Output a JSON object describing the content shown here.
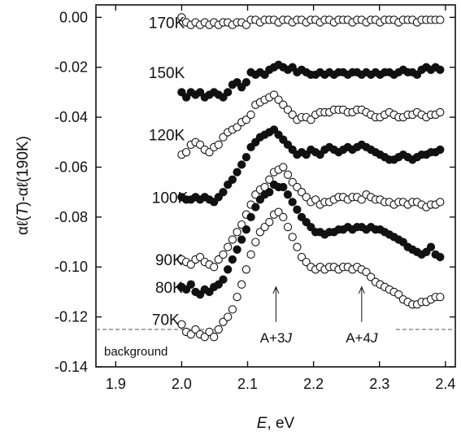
{
  "chart_data": {
    "type": "scatter",
    "xlabel_var": "E",
    "xlabel_unit": ", eV",
    "ylabel_pre": "αℓ(",
    "ylabel_var": "T",
    "ylabel_post": ")-αℓ(190K)",
    "xlim": [
      1.87,
      2.415
    ],
    "ylim": [
      -0.14,
      0.005
    ],
    "xticks": [
      1.9,
      2.0,
      2.1,
      2.2,
      2.3,
      2.4
    ],
    "xtick_labels": [
      "1.9",
      "2.0",
      "2.1",
      "2.2",
      "2.3",
      "2.4"
    ],
    "yticks": [
      0.0,
      -0.02,
      -0.04,
      -0.06,
      -0.08,
      -0.1,
      -0.12,
      -0.14
    ],
    "ytick_labels": [
      "0.00",
      "-0.02",
      "-0.04",
      "-0.06",
      "-0.08",
      "-0.10",
      "-0.12",
      "-0.14"
    ],
    "series": [
      {
        "name": "170K",
        "filled": false,
        "label_pos": [
          1.95,
          -0.002
        ],
        "x": [
          2.0,
          2.007,
          2.014,
          2.021,
          2.028,
          2.035,
          2.042,
          2.049,
          2.056,
          2.063,
          2.07,
          2.077,
          2.084,
          2.091,
          2.098,
          2.105,
          2.112,
          2.119,
          2.126,
          2.133,
          2.14,
          2.147,
          2.154,
          2.161,
          2.168,
          2.175,
          2.182,
          2.189,
          2.196,
          2.203,
          2.21,
          2.217,
          2.224,
          2.231,
          2.238,
          2.245,
          2.252,
          2.259,
          2.266,
          2.273,
          2.28,
          2.287,
          2.294,
          2.301,
          2.308,
          2.315,
          2.322,
          2.329,
          2.336,
          2.343,
          2.35,
          2.357,
          2.364,
          2.371,
          2.378,
          2.385,
          2.392
        ],
        "y": [
          0.0,
          -0.002,
          -0.003,
          -0.002,
          -0.003,
          -0.002,
          -0.003,
          -0.002,
          -0.003,
          -0.002,
          -0.002,
          -0.003,
          -0.002,
          -0.002,
          -0.003,
          -0.001,
          -0.001,
          -0.002,
          -0.001,
          -0.001,
          -0.001,
          -0.002,
          -0.001,
          -0.001,
          -0.002,
          -0.001,
          -0.001,
          -0.002,
          -0.001,
          -0.001,
          -0.002,
          -0.001,
          -0.001,
          -0.002,
          -0.001,
          -0.001,
          -0.001,
          -0.002,
          -0.001,
          -0.001,
          -0.002,
          -0.001,
          -0.001,
          -0.002,
          -0.001,
          -0.001,
          -0.001,
          -0.002,
          -0.001,
          -0.001,
          -0.001,
          -0.002,
          -0.001,
          -0.001,
          -0.001,
          -0.001,
          -0.001
        ]
      },
      {
        "name": "150K",
        "filled": true,
        "label_pos": [
          1.95,
          -0.022
        ],
        "x": [
          2.0,
          2.007,
          2.014,
          2.021,
          2.028,
          2.035,
          2.042,
          2.049,
          2.056,
          2.063,
          2.07,
          2.077,
          2.084,
          2.091,
          2.098,
          2.105,
          2.112,
          2.119,
          2.126,
          2.133,
          2.14,
          2.147,
          2.154,
          2.161,
          2.168,
          2.175,
          2.182,
          2.189,
          2.196,
          2.203,
          2.21,
          2.217,
          2.224,
          2.231,
          2.238,
          2.245,
          2.252,
          2.259,
          2.266,
          2.273,
          2.28,
          2.287,
          2.294,
          2.301,
          2.308,
          2.315,
          2.322,
          2.329,
          2.336,
          2.343,
          2.35,
          2.357,
          2.364,
          2.371,
          2.378,
          2.385,
          2.392
        ],
        "y": [
          -0.03,
          -0.032,
          -0.03,
          -0.031,
          -0.03,
          -0.032,
          -0.031,
          -0.03,
          -0.031,
          -0.032,
          -0.03,
          -0.027,
          -0.026,
          -0.028,
          -0.026,
          -0.022,
          -0.023,
          -0.022,
          -0.023,
          -0.021,
          -0.02,
          -0.019,
          -0.02,
          -0.021,
          -0.02,
          -0.022,
          -0.021,
          -0.022,
          -0.023,
          -0.023,
          -0.022,
          -0.023,
          -0.022,
          -0.023,
          -0.022,
          -0.022,
          -0.023,
          -0.022,
          -0.022,
          -0.023,
          -0.022,
          -0.023,
          -0.022,
          -0.023,
          -0.022,
          -0.022,
          -0.023,
          -0.022,
          -0.021,
          -0.022,
          -0.022,
          -0.023,
          -0.021,
          -0.02,
          -0.021,
          -0.02,
          -0.021
        ]
      },
      {
        "name": "120K",
        "filled": false,
        "label_pos": [
          1.95,
          -0.047
        ],
        "x": [
          2.0,
          2.007,
          2.014,
          2.021,
          2.028,
          2.035,
          2.042,
          2.049,
          2.056,
          2.063,
          2.07,
          2.077,
          2.084,
          2.091,
          2.098,
          2.105,
          2.112,
          2.119,
          2.126,
          2.133,
          2.14,
          2.147,
          2.154,
          2.161,
          2.168,
          2.175,
          2.182,
          2.189,
          2.196,
          2.203,
          2.21,
          2.217,
          2.224,
          2.231,
          2.238,
          2.245,
          2.252,
          2.259,
          2.266,
          2.273,
          2.28,
          2.287,
          2.294,
          2.301,
          2.308,
          2.315,
          2.322,
          2.329,
          2.336,
          2.343,
          2.35,
          2.357,
          2.364,
          2.371,
          2.378,
          2.385,
          2.392
        ],
        "y": [
          -0.055,
          -0.054,
          -0.051,
          -0.05,
          -0.051,
          -0.053,
          -0.054,
          -0.052,
          -0.051,
          -0.048,
          -0.046,
          -0.045,
          -0.044,
          -0.042,
          -0.041,
          -0.039,
          -0.035,
          -0.034,
          -0.033,
          -0.032,
          -0.031,
          -0.033,
          -0.035,
          -0.037,
          -0.039,
          -0.041,
          -0.04,
          -0.04,
          -0.041,
          -0.039,
          -0.038,
          -0.038,
          -0.038,
          -0.037,
          -0.037,
          -0.037,
          -0.038,
          -0.038,
          -0.037,
          -0.037,
          -0.038,
          -0.039,
          -0.04,
          -0.04,
          -0.039,
          -0.038,
          -0.039,
          -0.04,
          -0.04,
          -0.039,
          -0.039,
          -0.038,
          -0.039,
          -0.04,
          -0.039,
          -0.039,
          -0.038
        ]
      },
      {
        "name": "100K",
        "filled": true,
        "label_pos": [
          1.955,
          -0.072
        ],
        "x": [
          2.0,
          2.007,
          2.014,
          2.021,
          2.028,
          2.035,
          2.042,
          2.049,
          2.056,
          2.063,
          2.07,
          2.077,
          2.084,
          2.091,
          2.098,
          2.105,
          2.112,
          2.119,
          2.126,
          2.133,
          2.14,
          2.147,
          2.154,
          2.161,
          2.168,
          2.175,
          2.182,
          2.189,
          2.196,
          2.203,
          2.21,
          2.217,
          2.224,
          2.231,
          2.238,
          2.245,
          2.252,
          2.259,
          2.266,
          2.273,
          2.28,
          2.287,
          2.294,
          2.301,
          2.308,
          2.315,
          2.322,
          2.329,
          2.336,
          2.343,
          2.35,
          2.357,
          2.364,
          2.371,
          2.378,
          2.385,
          2.392
        ],
        "y": [
          -0.072,
          -0.073,
          -0.073,
          -0.072,
          -0.073,
          -0.072,
          -0.073,
          -0.074,
          -0.072,
          -0.07,
          -0.067,
          -0.065,
          -0.062,
          -0.059,
          -0.056,
          -0.052,
          -0.05,
          -0.048,
          -0.047,
          -0.046,
          -0.045,
          -0.047,
          -0.049,
          -0.051,
          -0.053,
          -0.055,
          -0.054,
          -0.055,
          -0.053,
          -0.054,
          -0.055,
          -0.053,
          -0.052,
          -0.053,
          -0.054,
          -0.053,
          -0.052,
          -0.053,
          -0.052,
          -0.051,
          -0.052,
          -0.053,
          -0.054,
          -0.055,
          -0.056,
          -0.057,
          -0.057,
          -0.056,
          -0.055,
          -0.056,
          -0.057,
          -0.056,
          -0.055,
          -0.055,
          -0.054,
          -0.054,
          -0.053
        ]
      },
      {
        "name": "90K",
        "filled": false,
        "label_pos": [
          1.96,
          -0.097
        ],
        "x": [
          2.0,
          2.007,
          2.014,
          2.021,
          2.028,
          2.035,
          2.042,
          2.049,
          2.056,
          2.063,
          2.07,
          2.077,
          2.084,
          2.091,
          2.098,
          2.105,
          2.112,
          2.119,
          2.126,
          2.133,
          2.14,
          2.147,
          2.154,
          2.161,
          2.168,
          2.175,
          2.182,
          2.189,
          2.196,
          2.203,
          2.21,
          2.217,
          2.224,
          2.231,
          2.238,
          2.245,
          2.252,
          2.259,
          2.266,
          2.273,
          2.28,
          2.287,
          2.294,
          2.301,
          2.308,
          2.315,
          2.322,
          2.329,
          2.336,
          2.343,
          2.35,
          2.357,
          2.364,
          2.371,
          2.378,
          2.385,
          2.392
        ],
        "y": [
          -0.097,
          -0.098,
          -0.099,
          -0.097,
          -0.096,
          -0.098,
          -0.099,
          -0.1,
          -0.097,
          -0.095,
          -0.092,
          -0.089,
          -0.086,
          -0.083,
          -0.079,
          -0.075,
          -0.071,
          -0.069,
          -0.068,
          -0.065,
          -0.062,
          -0.061,
          -0.06,
          -0.063,
          -0.066,
          -0.068,
          -0.07,
          -0.072,
          -0.074,
          -0.073,
          -0.075,
          -0.074,
          -0.074,
          -0.073,
          -0.072,
          -0.072,
          -0.073,
          -0.072,
          -0.072,
          -0.073,
          -0.071,
          -0.072,
          -0.073,
          -0.073,
          -0.074,
          -0.074,
          -0.075,
          -0.074,
          -0.074,
          -0.075,
          -0.074,
          -0.074,
          -0.075,
          -0.076,
          -0.075,
          -0.075,
          -0.074
        ]
      },
      {
        "name": "80K",
        "filled": true,
        "label_pos": [
          1.96,
          -0.108
        ],
        "x": [
          2.0,
          2.007,
          2.014,
          2.021,
          2.028,
          2.035,
          2.042,
          2.049,
          2.056,
          2.063,
          2.07,
          2.077,
          2.084,
          2.091,
          2.098,
          2.105,
          2.112,
          2.119,
          2.126,
          2.133,
          2.14,
          2.147,
          2.154,
          2.161,
          2.168,
          2.175,
          2.182,
          2.189,
          2.196,
          2.203,
          2.21,
          2.217,
          2.224,
          2.231,
          2.238,
          2.245,
          2.252,
          2.259,
          2.266,
          2.273,
          2.28,
          2.287,
          2.294,
          2.301,
          2.308,
          2.315,
          2.322,
          2.329,
          2.336,
          2.343,
          2.35,
          2.357,
          2.364,
          2.371,
          2.378,
          2.385,
          2.392
        ],
        "y": [
          -0.108,
          -0.109,
          -0.107,
          -0.11,
          -0.111,
          -0.109,
          -0.11,
          -0.108,
          -0.107,
          -0.105,
          -0.101,
          -0.097,
          -0.093,
          -0.089,
          -0.085,
          -0.08,
          -0.076,
          -0.073,
          -0.071,
          -0.07,
          -0.067,
          -0.068,
          -0.068,
          -0.071,
          -0.074,
          -0.077,
          -0.08,
          -0.082,
          -0.084,
          -0.086,
          -0.086,
          -0.087,
          -0.086,
          -0.086,
          -0.085,
          -0.085,
          -0.084,
          -0.085,
          -0.084,
          -0.084,
          -0.085,
          -0.084,
          -0.085,
          -0.085,
          -0.086,
          -0.087,
          -0.088,
          -0.089,
          -0.09,
          -0.092,
          -0.093,
          -0.094,
          -0.095,
          -0.094,
          -0.092,
          -0.095,
          -0.096
        ]
      },
      {
        "name": "70K",
        "filled": false,
        "label_pos": [
          1.955,
          -0.121
        ],
        "x": [
          2.0,
          2.007,
          2.014,
          2.021,
          2.028,
          2.035,
          2.042,
          2.049,
          2.056,
          2.063,
          2.07,
          2.077,
          2.084,
          2.091,
          2.098,
          2.105,
          2.112,
          2.119,
          2.126,
          2.133,
          2.14,
          2.147,
          2.154,
          2.161,
          2.168,
          2.175,
          2.182,
          2.189,
          2.196,
          2.203,
          2.21,
          2.217,
          2.224,
          2.231,
          2.238,
          2.245,
          2.252,
          2.259,
          2.266,
          2.273,
          2.28,
          2.287,
          2.294,
          2.301,
          2.308,
          2.315,
          2.322,
          2.329,
          2.336,
          2.343,
          2.35,
          2.357,
          2.364,
          2.371,
          2.378,
          2.385,
          2.392
        ],
        "y": [
          -0.123,
          -0.126,
          -0.127,
          -0.125,
          -0.127,
          -0.128,
          -0.126,
          -0.128,
          -0.125,
          -0.122,
          -0.12,
          -0.117,
          -0.112,
          -0.107,
          -0.101,
          -0.095,
          -0.09,
          -0.086,
          -0.084,
          -0.082,
          -0.079,
          -0.078,
          -0.08,
          -0.084,
          -0.088,
          -0.092,
          -0.096,
          -0.098,
          -0.1,
          -0.101,
          -0.1,
          -0.101,
          -0.1,
          -0.1,
          -0.101,
          -0.1,
          -0.1,
          -0.101,
          -0.1,
          -0.101,
          -0.102,
          -0.104,
          -0.106,
          -0.107,
          -0.108,
          -0.109,
          -0.11,
          -0.111,
          -0.113,
          -0.114,
          -0.115,
          -0.115,
          -0.114,
          -0.114,
          -0.113,
          -0.112,
          -0.112
        ]
      }
    ],
    "background": {
      "label": "background",
      "y": -0.125,
      "segments": [
        [
          1.87,
          2.06
        ],
        [
          2.325,
          2.415
        ]
      ]
    },
    "annotations": [
      {
        "label_pre": "A+3",
        "label_var": "J",
        "x": 2.143,
        "y_tail": -0.122,
        "y_head": -0.108
      },
      {
        "label_pre": "A+4",
        "label_var": "J",
        "x": 2.273,
        "y_tail": -0.122,
        "y_head": -0.108
      }
    ]
  }
}
